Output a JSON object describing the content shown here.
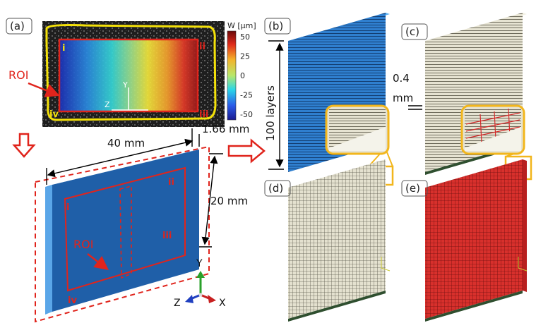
{
  "panels": {
    "a": "(a)",
    "b": "(b)",
    "c": "(c)",
    "d": "(d)",
    "e": "(e)"
  },
  "photo": {
    "roi_label": "ROI",
    "corner_i": "i",
    "corner_ii": "ii",
    "corner_iii": "iii",
    "corner_iv": "iv",
    "axis_y": "Y",
    "axis_z": "Z"
  },
  "colorbar": {
    "title": "W [μm]",
    "ticks": [
      "50",
      "25",
      "0",
      "-25",
      "-50"
    ],
    "range": [
      -50,
      50
    ]
  },
  "model": {
    "length_label": "40 mm",
    "height_label": "20 mm",
    "thickness_label": "1.66 mm",
    "roi_label": "ROI",
    "corner_i": "i",
    "corner_ii": "ii",
    "corner_iii": "iii",
    "corner_iv": "iv"
  },
  "triad": {
    "y": "Y",
    "z": "Z",
    "x": "X"
  },
  "mesh": {
    "layers_label": "100 layers",
    "layer_thickness_value": "0.4",
    "layer_thickness_unit": "mm"
  },
  "colors": {
    "laminate_blue": "#1f5fa8",
    "mesh_red": "#d42a2a",
    "mesh_grey": "#d9d6c4",
    "outline_red": "#e0241c",
    "callout_yellow": "#f2b61c",
    "contour_yellow": "#f4e10a"
  }
}
